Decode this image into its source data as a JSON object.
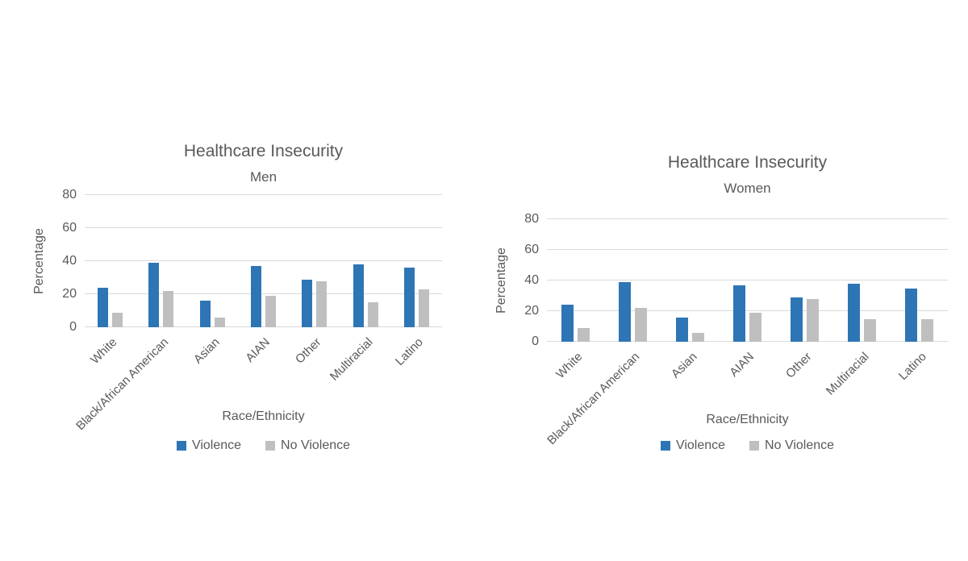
{
  "page": {
    "background": "#FFFFFF"
  },
  "colors": {
    "violence": "#2E75B6",
    "no_violence": "#BFBFBF",
    "gridline": "#D9D9D9",
    "text": "#595959"
  },
  "chart_data": [
    {
      "type": "bar",
      "title": "Healthcare Insecurity",
      "subtitle": "Men",
      "xlabel": "Race/Ethnicity",
      "ylabel": "Percentage",
      "ylim": [
        0,
        80
      ],
      "yticks": [
        0,
        20,
        40,
        60,
        80
      ],
      "grid": true,
      "legend_position": "bottom",
      "categories": [
        "White",
        "Black/African American",
        "Asian",
        "AIAN",
        "Other",
        "Multiracial",
        "Latino"
      ],
      "series": [
        {
          "name": "Violence",
          "color": "#2E75B6",
          "values": [
            24,
            39,
            16,
            37,
            29,
            38,
            36
          ]
        },
        {
          "name": "No Violence",
          "color": "#BFBFBF",
          "values": [
            9,
            22,
            6,
            19,
            28,
            15,
            23
          ]
        }
      ]
    },
    {
      "type": "bar",
      "title": "Healthcare Insecurity",
      "subtitle": "Women",
      "xlabel": "Race/Ethnicity",
      "ylabel": "Percentage",
      "ylim": [
        0,
        80
      ],
      "yticks": [
        0,
        20,
        40,
        60,
        80
      ],
      "grid": true,
      "legend_position": "bottom",
      "categories": [
        "White",
        "Black/African American",
        "Asian",
        "AIAN",
        "Other",
        "Multiracial",
        "Latino"
      ],
      "series": [
        {
          "name": "Violence",
          "color": "#2E75B6",
          "values": [
            24,
            39,
            16,
            37,
            29,
            38,
            35
          ]
        },
        {
          "name": "No Violence",
          "color": "#BFBFBF",
          "values": [
            9,
            22,
            6,
            19,
            28,
            15,
            15
          ]
        }
      ]
    }
  ]
}
